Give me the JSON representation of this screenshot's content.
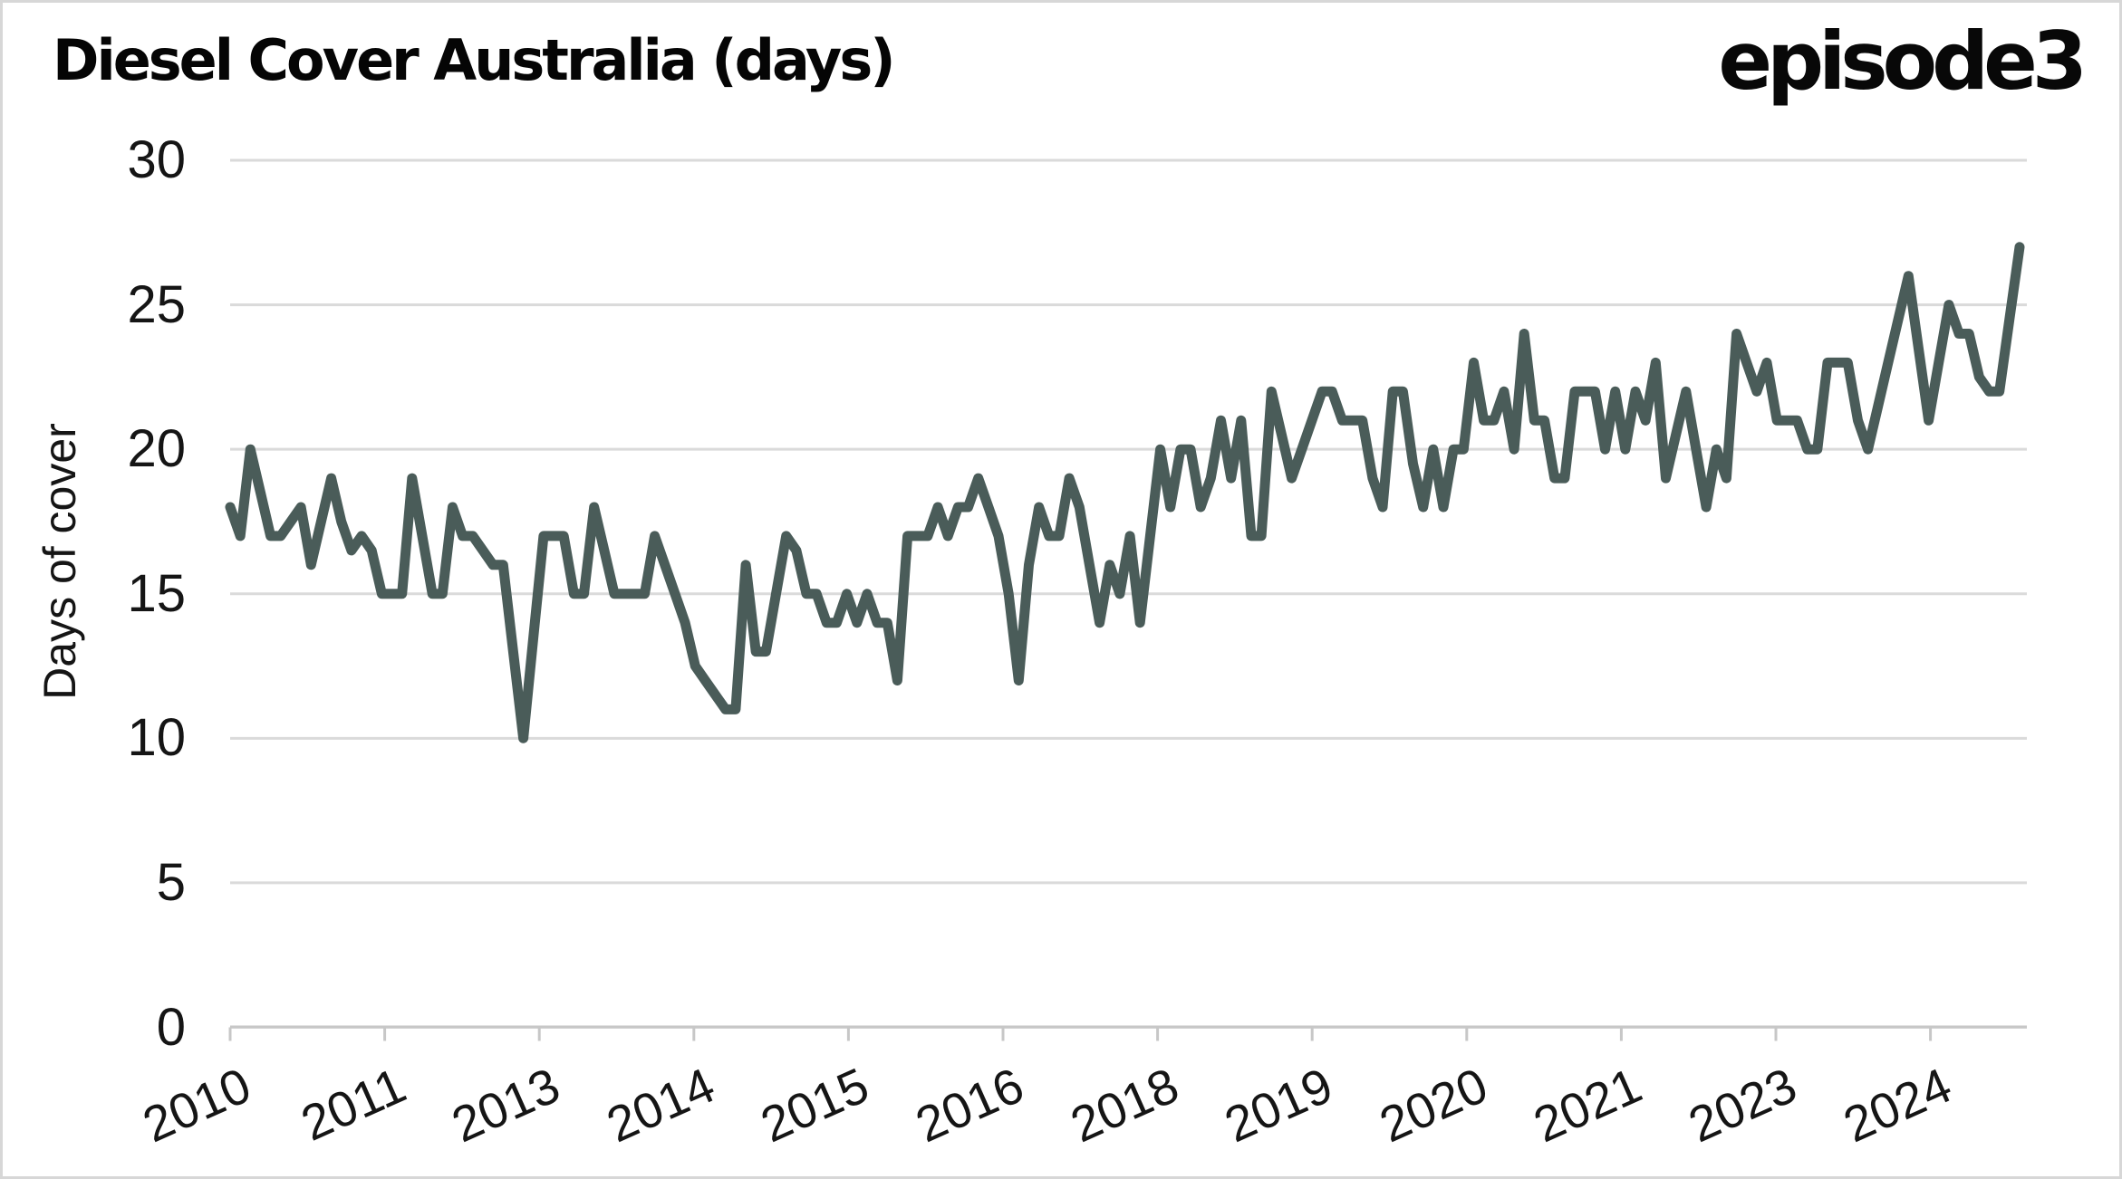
{
  "header": {
    "title": "Diesel Cover Australia (days)",
    "brand_logo": "episode3"
  },
  "chart_data": {
    "type": "line",
    "title": "Diesel Cover Australia (days)",
    "xlabel": "",
    "ylabel": "Days of cover",
    "ylim": [
      0,
      30
    ],
    "yticks": [
      0,
      5,
      10,
      15,
      20,
      25,
      30
    ],
    "xtick_labels": [
      "2010",
      "2011",
      "2013",
      "2014",
      "2015",
      "2016",
      "2018",
      "2019",
      "2020",
      "2021",
      "2023",
      "2024"
    ],
    "xtick_label_rotation_deg": -24,
    "grid": "horizontal",
    "legend_position": "none",
    "series": [
      {
        "name": "Diesel cover (days)",
        "frequency": "monthly",
        "start_period": "2010",
        "end_period": "2024",
        "color": "#4a5c59",
        "values": [
          18,
          17,
          20,
          18.5,
          17,
          17,
          17.5,
          18,
          16,
          17.5,
          19,
          17.5,
          16.5,
          17,
          16.5,
          15,
          15,
          15,
          19,
          17,
          15,
          15,
          18,
          17,
          17,
          16.5,
          16,
          16,
          13,
          10,
          13.5,
          17,
          17,
          17,
          15,
          15,
          18,
          16.5,
          15,
          15,
          15,
          15,
          17,
          16,
          15,
          14,
          12.5,
          12,
          11.5,
          11,
          11,
          16,
          13,
          13,
          15,
          17,
          16.5,
          15,
          15,
          14,
          14,
          15,
          14,
          15,
          14,
          14,
          12,
          17,
          17,
          17,
          18,
          17,
          18,
          18,
          19,
          18,
          17,
          15,
          12,
          16,
          18,
          17,
          17,
          19,
          18,
          16,
          14,
          16,
          15,
          17,
          14,
          17,
          20,
          18,
          20,
          20,
          18,
          19,
          21,
          19,
          21,
          17,
          17,
          22,
          20.5,
          19,
          20,
          21,
          22,
          22,
          21,
          21,
          21,
          19,
          18,
          22,
          22,
          19.5,
          18,
          20,
          18,
          20,
          20,
          23,
          21,
          21,
          22,
          20,
          24,
          21,
          21,
          19,
          19,
          22,
          22,
          22,
          20,
          22,
          20,
          22,
          21,
          23,
          19,
          20.5,
          22,
          20,
          18,
          20,
          19,
          24,
          23,
          22,
          23,
          21,
          21,
          21,
          20,
          20,
          23,
          23,
          23,
          21,
          20,
          21.5,
          23,
          24.5,
          26,
          23.5,
          21,
          23,
          25,
          24,
          24,
          22.5,
          22,
          22,
          24.5,
          27
        ]
      }
    ]
  },
  "colors": {
    "background": "#ffffff",
    "line": "#4a5c59",
    "gridline": "#dadada",
    "axis": "#c7c7c7",
    "text": "#151515",
    "title_text": "#050505",
    "frame_border": "#d7d7d7"
  }
}
